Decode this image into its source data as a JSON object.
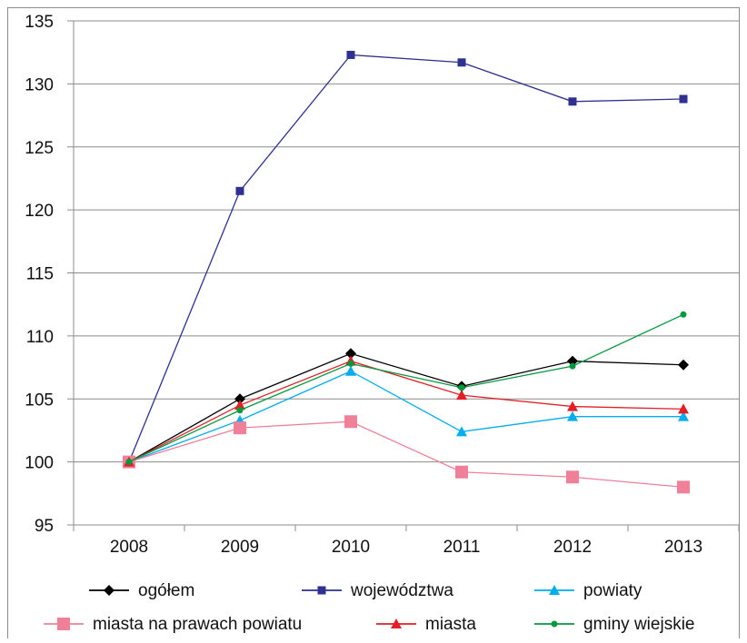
{
  "chart_data": {
    "type": "line",
    "title": "",
    "xlabel": "",
    "ylabel": "",
    "categories": [
      "2008",
      "2009",
      "2010",
      "2011",
      "2012",
      "2013"
    ],
    "ylim": [
      95,
      135
    ],
    "yticks": [
      95,
      100,
      105,
      110,
      115,
      120,
      125,
      130,
      135
    ],
    "grid": true,
    "legend_position": "bottom",
    "series": [
      {
        "name": "ogółem",
        "color": "#000000",
        "marker": "diamond",
        "values": [
          100,
          105.0,
          108.6,
          106.0,
          108.0,
          107.7
        ]
      },
      {
        "name": "województwa",
        "color": "#2e3192",
        "marker": "square",
        "values": [
          100,
          121.5,
          132.3,
          131.7,
          128.6,
          128.8
        ]
      },
      {
        "name": "powiaty",
        "color": "#00aeef",
        "marker": "triangle",
        "values": [
          100,
          103.3,
          107.2,
          102.4,
          103.6,
          103.6
        ]
      },
      {
        "name": "miasta na prawach powiatu",
        "color": "#f08098",
        "marker": "square-large",
        "values": [
          100,
          102.7,
          103.2,
          99.2,
          98.8,
          98.0
        ]
      },
      {
        "name": "miasta",
        "color": "#e31e24",
        "marker": "triangle",
        "values": [
          100,
          104.5,
          108.0,
          105.3,
          104.4,
          104.2
        ]
      },
      {
        "name": "gminy wiejskie",
        "color": "#009a3d",
        "marker": "circle",
        "values": [
          100,
          104.1,
          107.8,
          105.9,
          107.6,
          111.7
        ]
      }
    ]
  }
}
